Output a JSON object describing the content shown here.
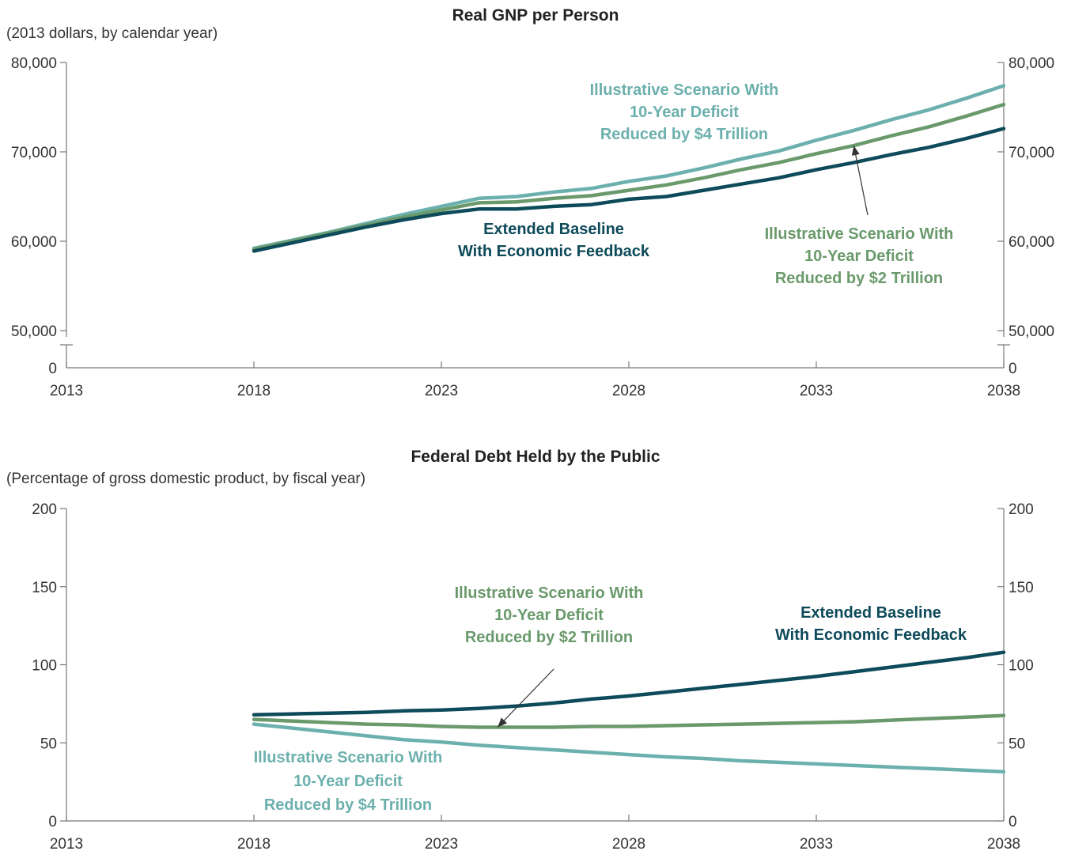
{
  "colors": {
    "baseline": "#0d4a5a",
    "scenario2": "#6a9a6c",
    "scenario4": "#6cb0ad",
    "axis": "#777777"
  },
  "chart_data": [
    {
      "type": "line",
      "title": "Real GNP per Person",
      "units": "(2013 dollars, by calendar year)",
      "xlim": [
        2013,
        2038
      ],
      "x_ticks": [
        "2013",
        "2018",
        "2023",
        "2028",
        "2033",
        "2038"
      ],
      "ylim": [
        50000,
        80000
      ],
      "y_break": true,
      "y_ticks": [
        "80,000",
        "70,000",
        "60,000",
        "50,000",
        "0"
      ],
      "grid": false,
      "x": [
        2018,
        2019,
        2020,
        2021,
        2022,
        2023,
        2024,
        2025,
        2026,
        2027,
        2028,
        2029,
        2030,
        2031,
        2032,
        2033,
        2034,
        2035,
        2036,
        2037,
        2038
      ],
      "series": [
        {
          "key": "scenario4",
          "label_lines": [
            "Illustrative Scenario With",
            "10-Year Deficit",
            "Reduced by $4 Trillion"
          ],
          "values": [
            59200,
            60100,
            61000,
            62000,
            63000,
            63900,
            64800,
            65000,
            65500,
            65900,
            66700,
            67300,
            68200,
            69200,
            70100,
            71300,
            72400,
            73600,
            74700,
            76000,
            77400
          ]
        },
        {
          "key": "scenario2",
          "label_lines": [
            "Illustrative Scenario With",
            "10-Year Deficit",
            "Reduced by $2 Trillion"
          ],
          "values": [
            59100,
            60000,
            60900,
            61800,
            62700,
            63500,
            64300,
            64400,
            64800,
            65100,
            65700,
            66300,
            67100,
            68000,
            68800,
            69800,
            70700,
            71800,
            72800,
            74000,
            75300
          ]
        },
        {
          "key": "baseline",
          "label_lines": [
            "Extended Baseline",
            "With Economic Feedback"
          ],
          "values": [
            58900,
            59800,
            60700,
            61600,
            62400,
            63100,
            63600,
            63600,
            63900,
            64100,
            64700,
            65000,
            65700,
            66400,
            67100,
            68000,
            68800,
            69700,
            70500,
            71500,
            72600
          ]
        }
      ]
    },
    {
      "type": "line",
      "title": "Federal Debt Held by the Public",
      "units": "(Percentage of gross domestic product, by fiscal year)",
      "xlim": [
        2013,
        2038
      ],
      "x_ticks": [
        "2013",
        "2018",
        "2023",
        "2028",
        "2033",
        "2038"
      ],
      "ylim": [
        0,
        200
      ],
      "y_ticks": [
        "200",
        "150",
        "100",
        "50",
        "0"
      ],
      "grid": false,
      "x": [
        2018,
        2019,
        2020,
        2021,
        2022,
        2023,
        2024,
        2025,
        2026,
        2027,
        2028,
        2029,
        2030,
        2031,
        2032,
        2033,
        2034,
        2035,
        2036,
        2037,
        2038
      ],
      "series": [
        {
          "key": "baseline",
          "label_lines": [
            "Extended Baseline",
            "With Economic Feedback"
          ],
          "values": [
            68,
            68.5,
            69,
            69.5,
            70.5,
            71,
            72,
            73.5,
            75.5,
            78,
            80,
            82.5,
            85,
            87.5,
            90,
            92.5,
            95.5,
            98.5,
            101.5,
            104.5,
            108
          ]
        },
        {
          "key": "scenario2",
          "label_lines": [
            "Illustrative Scenario With",
            "10-Year Deficit",
            "Reduced by $2 Trillion"
          ],
          "values": [
            65,
            64,
            63,
            62,
            61.5,
            60.5,
            60,
            60,
            60,
            60.5,
            60.5,
            61,
            61.5,
            62,
            62.5,
            63,
            63.5,
            64.5,
            65.5,
            66.5,
            67.5
          ]
        },
        {
          "key": "scenario4",
          "label_lines": [
            "Illustrative Scenario With",
            "10-Year Deficit",
            "Reduced by $4 Trillion"
          ],
          "values": [
            62,
            59.5,
            57,
            54.5,
            52,
            50.5,
            48.5,
            47,
            45.5,
            44,
            42.5,
            41,
            40,
            38.5,
            37.5,
            36.5,
            35.5,
            34.5,
            33.5,
            32.5,
            31.5
          ]
        }
      ]
    }
  ]
}
